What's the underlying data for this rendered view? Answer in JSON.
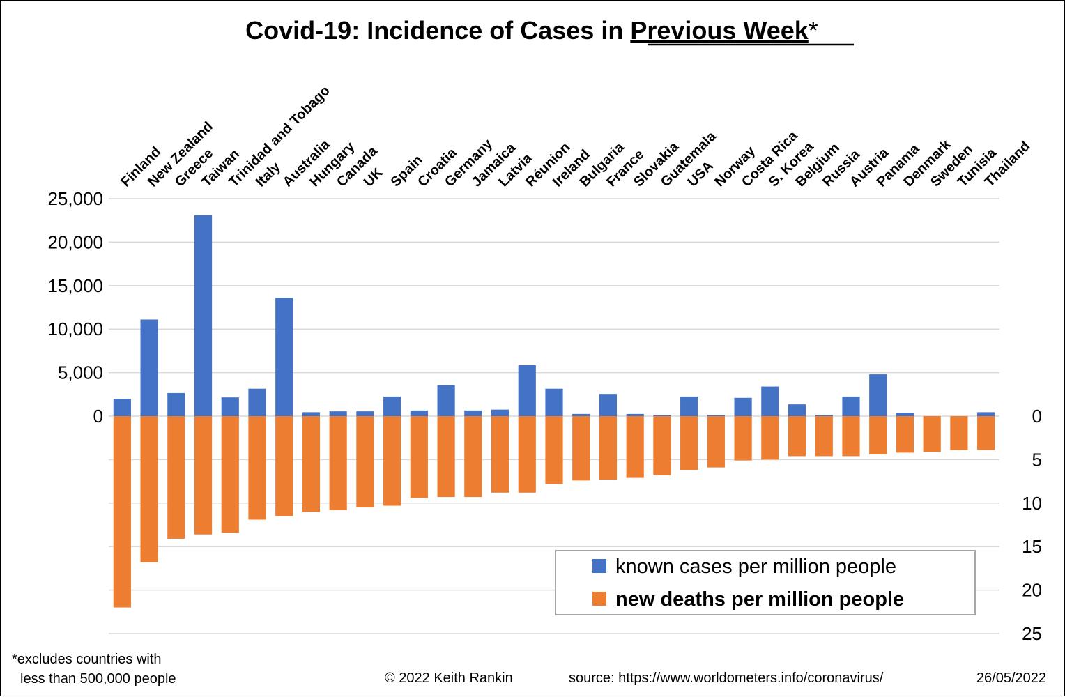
{
  "title": {
    "main": "Covid-19: Incidence of Cases in ",
    "emphasis": "Previous Week",
    "suffix": "*"
  },
  "footnote": {
    "line1": "*excludes countries with",
    "line2": "less than 500,000 people"
  },
  "credit": {
    "copyright": "© 2022  Keith Rankin",
    "source": "source: https://www.worldometers.info/coronavirus/",
    "date": "26/05/2022"
  },
  "legend": {
    "position": "bottom-right",
    "cases_label": "known cases per million people",
    "deaths_label": "new deaths per million people"
  },
  "colors": {
    "cases": "#4472C4",
    "deaths": "#ED7D31",
    "gridline": "#D9D9D9",
    "legend_border": "#A6A6A6"
  },
  "chart_data": {
    "type": "bar",
    "title": "Covid-19: Incidence of Cases in Previous Week*",
    "xlabel": "",
    "ylabel": "",
    "grid": true,
    "categories": [
      "Finland",
      "New Zealand",
      "Greece",
      "Taiwan",
      "Trinidad and Tobago",
      "Italy",
      "Australia",
      "Hungary",
      "Canada",
      "UK",
      "Spain",
      "Croatia",
      "Germany",
      "Jamaica",
      "Latvia",
      "Réunion",
      "Ireland",
      "Bulgaria",
      "France",
      "Slovakia",
      "Guatemala",
      "USA",
      "Norway",
      "Costa Rica",
      "S. Korea",
      "Belgium",
      "Russia",
      "Austria",
      "Panama",
      "Denmark",
      "Sweden",
      "Tunisia",
      "Thailand"
    ],
    "left_axis": {
      "ylim": [
        0,
        25000
      ],
      "ticks": [
        "0",
        "5,000",
        "10,000",
        "15,000",
        "20,000",
        "25,000"
      ]
    },
    "right_axis": {
      "ylim": [
        0,
        25
      ],
      "inverted": true,
      "ticks": [
        "0",
        "5",
        "10",
        "15",
        "20",
        "25"
      ]
    },
    "series": [
      {
        "name": "known cases per million people",
        "axis": "left",
        "values": [
          2000,
          11100,
          2650,
          23100,
          2150,
          3150,
          13600,
          450,
          550,
          550,
          2250,
          650,
          3550,
          650,
          750,
          5850,
          3150,
          250,
          2550,
          250,
          150,
          2250,
          150,
          2100,
          3400,
          1350,
          150,
          2250,
          4800,
          400,
          0,
          0,
          450
        ]
      },
      {
        "name": "new deaths per million people",
        "axis": "right",
        "values": [
          22.0,
          16.8,
          14.1,
          13.6,
          13.4,
          11.9,
          11.5,
          11.0,
          10.8,
          10.5,
          10.3,
          9.4,
          9.3,
          9.3,
          8.8,
          8.8,
          7.8,
          7.4,
          7.3,
          7.1,
          6.8,
          6.2,
          5.9,
          5.1,
          5.0,
          4.6,
          4.6,
          4.6,
          4.4,
          4.2,
          4.1,
          3.9,
          3.9
        ]
      }
    ]
  }
}
